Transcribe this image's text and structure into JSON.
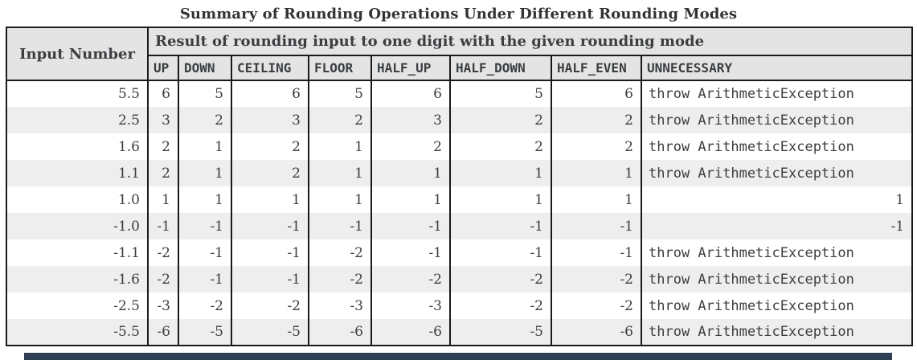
{
  "title": "Summary of Rounding Operations Under Different Rounding Modes",
  "table": {
    "input_header": "Input Number",
    "group_header": "Result of rounding input to one digit with the given rounding mode",
    "mode_headers": [
      "UP",
      "DOWN",
      "CEILING",
      "FLOOR",
      "HALF_UP",
      "HALF_DOWN",
      "HALF_EVEN",
      "UNNECESSARY"
    ],
    "rows": [
      {
        "input": "5.5",
        "values": [
          "6",
          "5",
          "6",
          "5",
          "6",
          "5",
          "6",
          "throw ArithmeticException"
        ]
      },
      {
        "input": "2.5",
        "values": [
          "3",
          "2",
          "3",
          "2",
          "3",
          "2",
          "2",
          "throw ArithmeticException"
        ]
      },
      {
        "input": "1.6",
        "values": [
          "2",
          "1",
          "2",
          "1",
          "2",
          "2",
          "2",
          "throw ArithmeticException"
        ]
      },
      {
        "input": "1.1",
        "values": [
          "2",
          "1",
          "2",
          "1",
          "1",
          "1",
          "1",
          "throw ArithmeticException"
        ]
      },
      {
        "input": "1.0",
        "values": [
          "1",
          "1",
          "1",
          "1",
          "1",
          "1",
          "1",
          "1"
        ]
      },
      {
        "input": "-1.0",
        "values": [
          "-1",
          "-1",
          "-1",
          "-1",
          "-1",
          "-1",
          "-1",
          "-1"
        ]
      },
      {
        "input": "-1.1",
        "values": [
          "-2",
          "-1",
          "-1",
          "-2",
          "-1",
          "-1",
          "-1",
          "throw ArithmeticException"
        ]
      },
      {
        "input": "-1.6",
        "values": [
          "-2",
          "-1",
          "-1",
          "-2",
          "-2",
          "-2",
          "-2",
          "throw ArithmeticException"
        ]
      },
      {
        "input": "-2.5",
        "values": [
          "-3",
          "-2",
          "-2",
          "-3",
          "-3",
          "-2",
          "-2",
          "throw ArithmeticException"
        ]
      },
      {
        "input": "-5.5",
        "values": [
          "-6",
          "-5",
          "-5",
          "-6",
          "-6",
          "-5",
          "-6",
          "throw ArithmeticException"
        ]
      }
    ]
  },
  "colors": {
    "border_color": "#1a1a1a",
    "header_bg": "#e4e4e4",
    "alt_row_bg": "#eeeeee",
    "text_color": "#3b3e41",
    "bottom_bar_color": "#2e3f55"
  }
}
